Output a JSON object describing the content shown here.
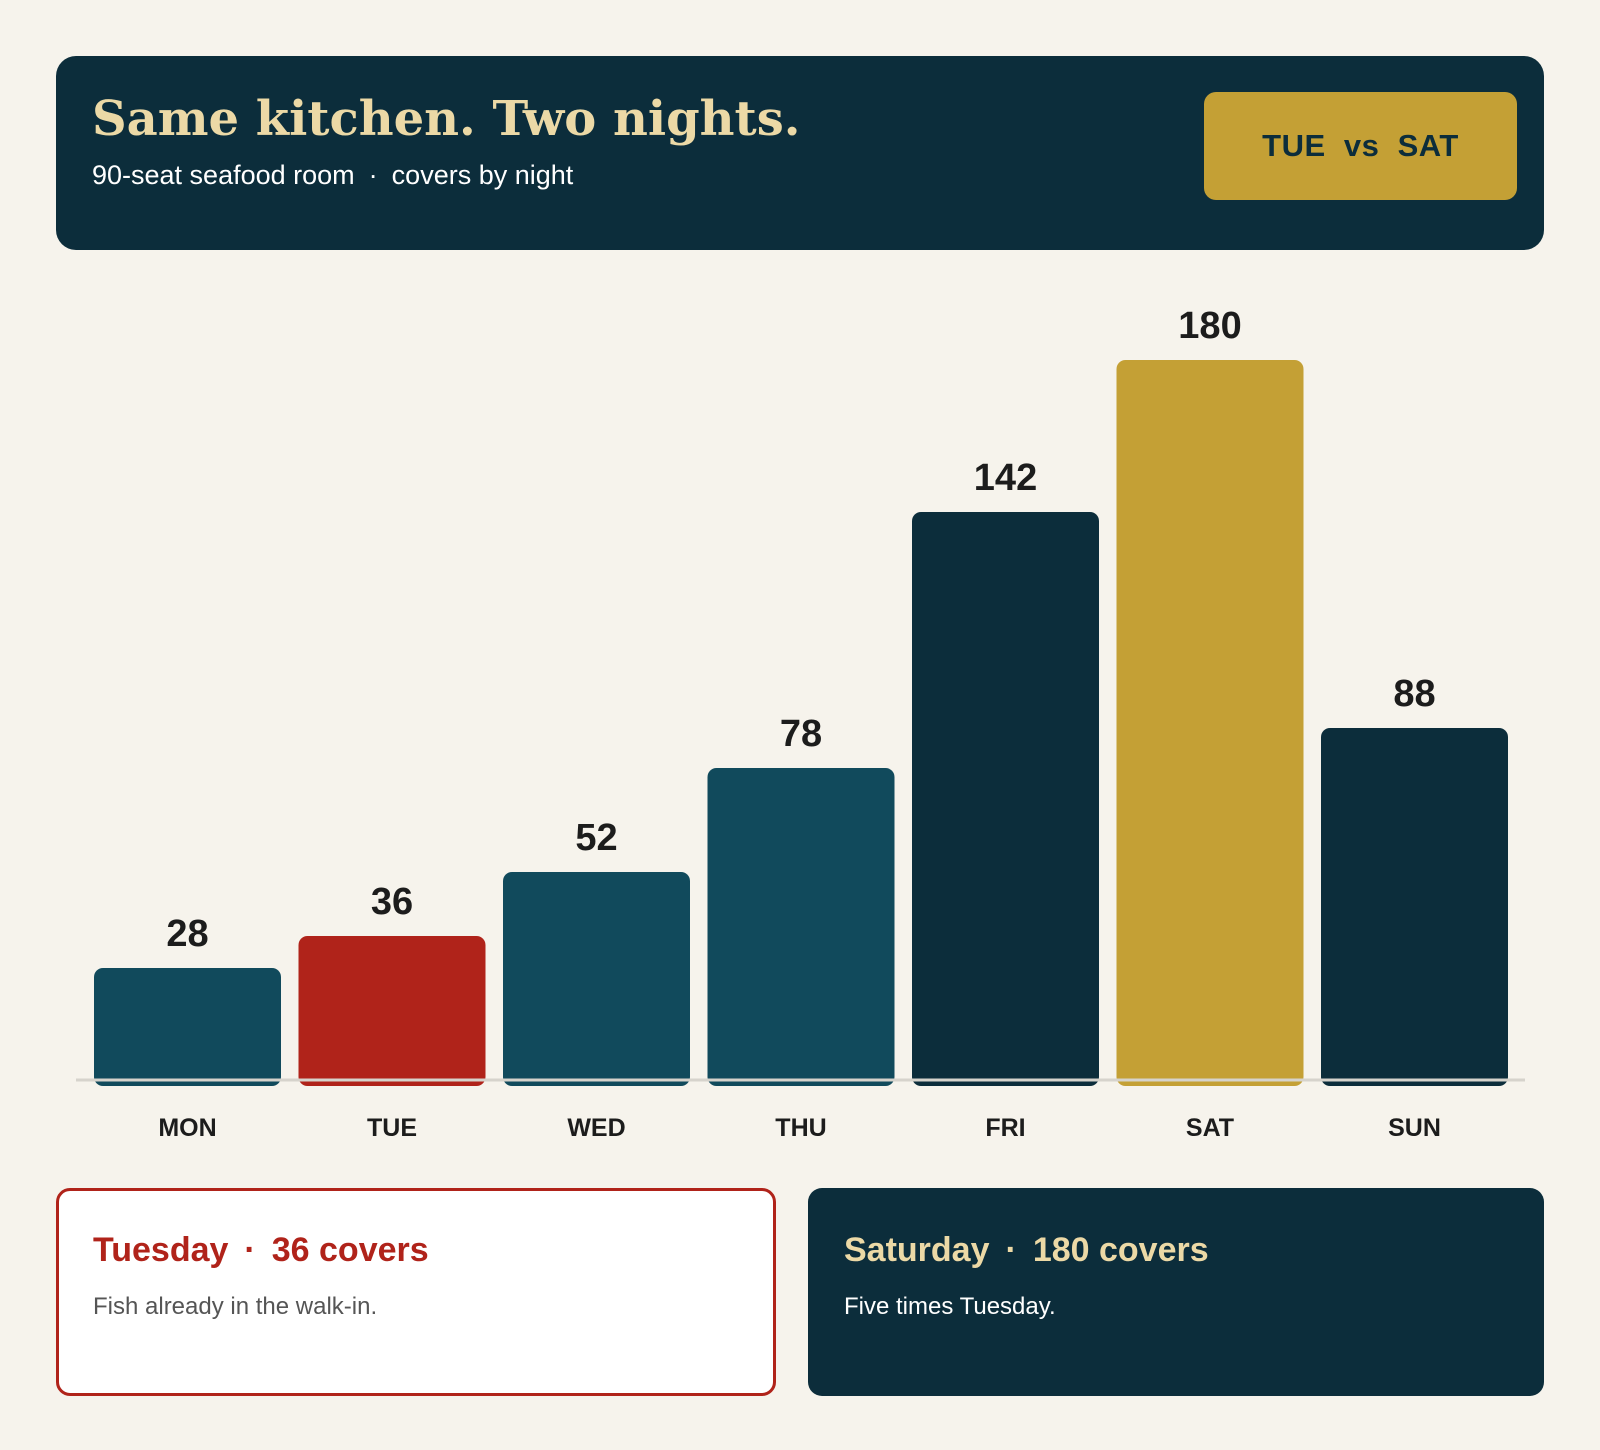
{
  "header": {
    "title": "Same kitchen. Two nights.",
    "subtitle_left": "90-seat seafood room",
    "subtitle_sep": "·",
    "subtitle_right": "covers by night",
    "badge": "TUE  vs  SAT"
  },
  "chart_data": {
    "type": "bar",
    "categories": [
      "MON",
      "TUE",
      "WED",
      "THU",
      "FRI",
      "SAT",
      "SUN"
    ],
    "values": [
      28,
      36,
      52,
      78,
      142,
      180,
      88
    ],
    "value_labels": [
      "28",
      "36",
      "52",
      "78",
      "142",
      "180",
      "88"
    ],
    "ylim": [
      0,
      180
    ],
    "grid": false,
    "bar_colors": [
      "#114a5c",
      "#b0231a",
      "#114a5c",
      "#114a5c",
      "#0c2d3b",
      "#c4a035",
      "#0c2d3b"
    ]
  },
  "cards": {
    "left": {
      "day": "Tuesday",
      "sep": "·",
      "covers": "36 covers",
      "note": "Fish already in the walk-in."
    },
    "right": {
      "day": "Saturday",
      "sep": "·",
      "covers": "180 covers",
      "note": "Five times Tuesday."
    }
  },
  "colors": {
    "background": "#f6f3ec",
    "navy": "#0c2d3b",
    "teal": "#114a5c",
    "red": "#b0231a",
    "gold": "#c4a035",
    "cream": "#ecd9a6"
  }
}
